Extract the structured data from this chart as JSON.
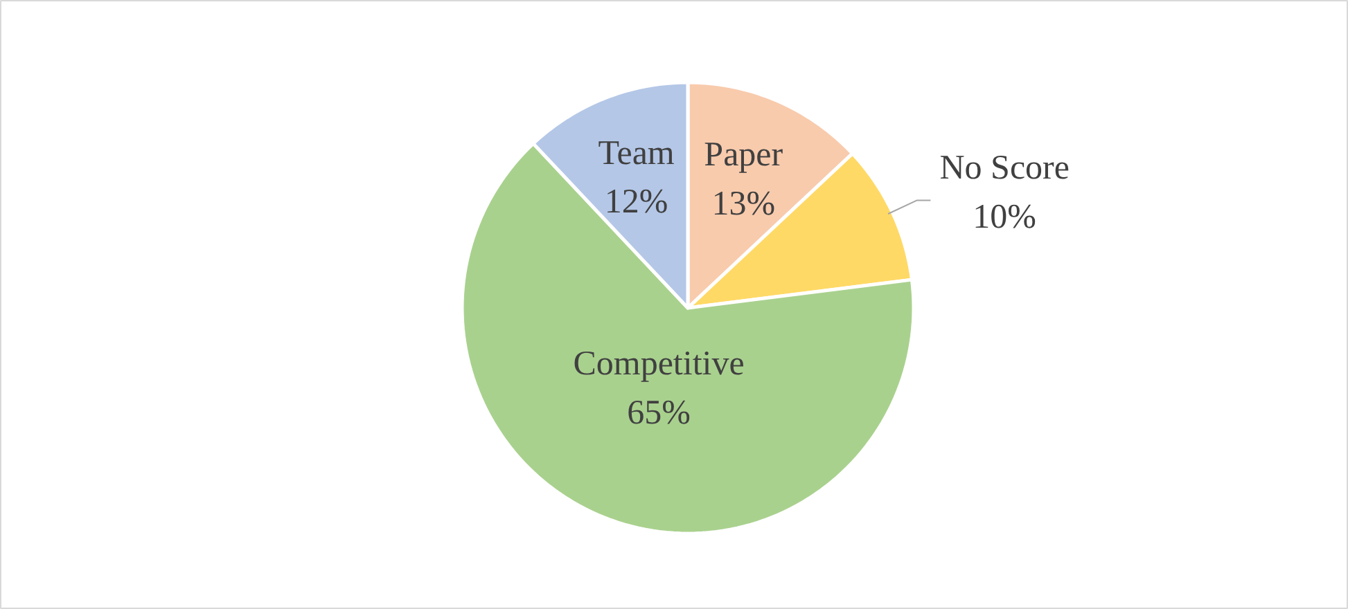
{
  "chart_data": {
    "type": "pie",
    "categories": [
      "Paper",
      "No Score",
      "Competitive",
      "Team"
    ],
    "values": [
      13,
      10,
      65,
      12
    ],
    "colors": [
      "#f8cbad",
      "#ffd966",
      "#a9d18e",
      "#b4c7e7"
    ],
    "value_labels": [
      "13%",
      "10%",
      "65%",
      "12%"
    ]
  }
}
